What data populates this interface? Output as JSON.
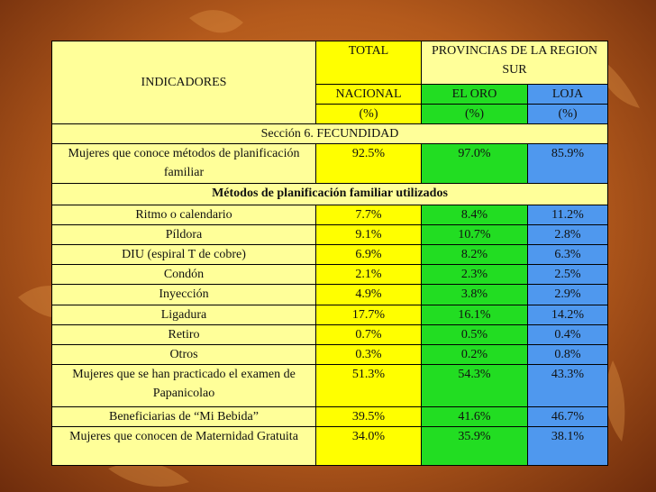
{
  "table": {
    "header": {
      "indicadores": "INDICADORES",
      "total": "TOTAL",
      "provincias": "PROVINCIAS DE LA REGION SUR",
      "nacional": "NACIONAL",
      "el_oro": "EL ORO",
      "loja": "LOJA",
      "units": [
        "(%)",
        "(%)",
        "(%)"
      ]
    },
    "section": "Sección 6. FECUNDIDAD",
    "rows_before": [
      [
        "Mujeres que conoce métodos de planificación familiar",
        "92.5%",
        "97.0%",
        "85.9%"
      ]
    ],
    "subsection": "Métodos de planificación familiar utilizados",
    "rows": [
      [
        "Ritmo o calendario",
        "7.7%",
        "8.4%",
        "11.2%"
      ],
      [
        "Píldora",
        "9.1%",
        "10.7%",
        "2.8%"
      ],
      [
        "DIU (espiral T de cobre)",
        "6.9%",
        "8.2%",
        "6.3%"
      ],
      [
        "Condón",
        "2.1%",
        "2.3%",
        "2.5%"
      ],
      [
        "Inyección",
        "4.9%",
        "3.8%",
        "2.9%"
      ],
      [
        "Ligadura",
        "17.7%",
        "16.1%",
        "14.2%"
      ],
      [
        "Retiro",
        "0.7%",
        "0.5%",
        "0.4%"
      ],
      [
        "Otros",
        "0.3%",
        "0.2%",
        "0.8%"
      ],
      [
        "Mujeres que se han practicado el examen de Papanicolao",
        "51.3%",
        "54.3%",
        "43.3%"
      ],
      [
        "Beneficiarias de “Mi Bebida”",
        "39.5%",
        "41.6%",
        "46.7%"
      ],
      [
        "Mujeres que conocen de Maternidad Gratuita",
        "34.0%",
        "35.9%",
        "38.1%"
      ]
    ]
  }
}
